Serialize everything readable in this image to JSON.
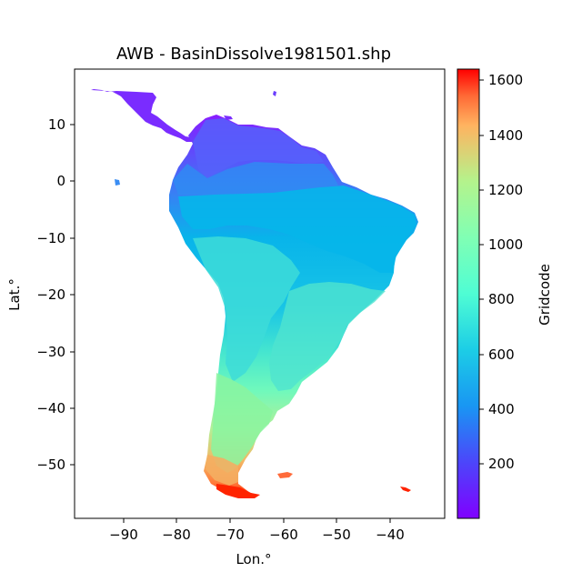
{
  "figure": {
    "title": "AWB - BasinDissolve1981501.shp",
    "xlabel": "Lon.°",
    "ylabel": "Lat.°",
    "colorbar_label": "Gridcode"
  },
  "chart_data": {
    "type": "map",
    "title": "AWB - BasinDissolve1981501.shp",
    "xlabel": "Lon.°",
    "ylabel": "Lat.°",
    "xlim": [
      -99,
      -33
    ],
    "ylim": [
      -59.5,
      19.5
    ],
    "xticks": [
      -90,
      -80,
      -70,
      -60,
      -50,
      -40
    ],
    "yticks": [
      10,
      0,
      -10,
      -20,
      -30,
      -40,
      -50
    ],
    "colorbar": {
      "label": "Gridcode",
      "colormap": "rainbow",
      "range": [
        1,
        1640
      ],
      "ticks": [
        200,
        400,
        600,
        800,
        1000,
        1200,
        1400,
        1600
      ]
    },
    "region": "South America and Central America basins",
    "colors": {
      "low": "#8000ff",
      "mid_low": "#00b4eb",
      "mid": "#40e8c8",
      "mid_high": "#80ff90",
      "high": "#ffb360",
      "max": "#ff0000"
    }
  }
}
